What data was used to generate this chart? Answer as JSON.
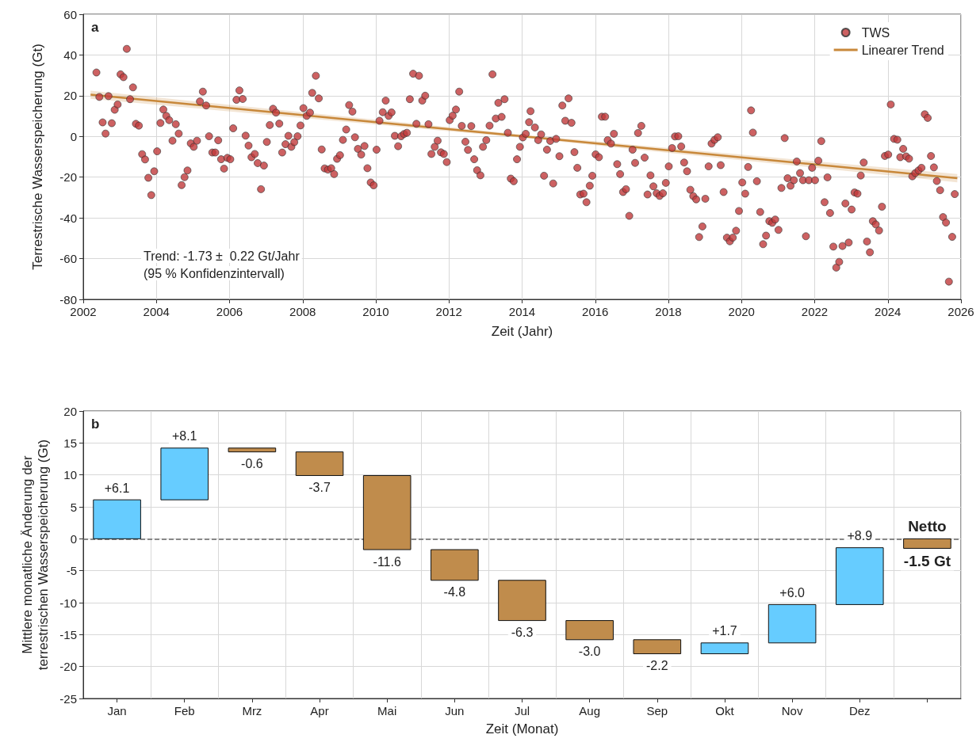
{
  "chart_data": [
    {
      "type": "scatter",
      "xlabel": "Zeit (Jahr)",
      "ylabel": "Terrestrische Wasserspeicherung (Gt)",
      "annotations": [
        "a",
        "Trend: -1.73 ±  0.22 Gt/Jahr",
        "(95 % Konfidenzintervall)"
      ],
      "xlim": [
        2002,
        2026
      ],
      "xticks": [
        2002,
        2004,
        2006,
        2008,
        2010,
        2012,
        2014,
        2016,
        2018,
        2020,
        2022,
        2024,
        2026
      ],
      "ylim": [
        -80,
        60
      ],
      "yticks": [
        -80,
        -60,
        -40,
        -20,
        0,
        20,
        40,
        60
      ],
      "grid": true,
      "legend": "top right",
      "series": [
        {
          "name": "TWS",
          "type": "scatter",
          "marker": "circle",
          "color": "#c0393b",
          "x": [
            2002.36,
            2002.44,
            2002.53,
            2002.61,
            2002.69,
            2002.78,
            2002.86,
            2002.94,
            2003.02,
            2003.1,
            2003.19,
            2003.28,
            2003.36,
            2003.44,
            2003.52,
            2003.61,
            2003.69,
            2003.78,
            2003.86,
            2003.94,
            2004.02,
            2004.11,
            2004.19,
            2004.27,
            2004.35,
            2004.44,
            2004.53,
            2004.61,
            2004.69,
            2004.77,
            2004.85,
            2004.94,
            2005.02,
            2005.11,
            2005.19,
            2005.27,
            2005.36,
            2005.44,
            2005.53,
            2005.61,
            2005.69,
            2005.77,
            2005.85,
            2005.94,
            2006.02,
            2006.1,
            2006.19,
            2006.27,
            2006.36,
            2006.44,
            2006.52,
            2006.6,
            2006.69,
            2006.77,
            2006.86,
            2006.94,
            2007.02,
            2007.1,
            2007.19,
            2007.27,
            2007.36,
            2007.44,
            2007.53,
            2007.61,
            2007.69,
            2007.77,
            2007.86,
            2007.94,
            2008.02,
            2008.11,
            2008.2,
            2008.26,
            2008.36,
            2008.44,
            2008.52,
            2008.6,
            2008.69,
            2008.78,
            2008.86,
            2008.94,
            2009.02,
            2009.1,
            2009.19,
            2009.27,
            2009.36,
            2009.43,
            2009.51,
            2009.6,
            2009.69,
            2009.77,
            2009.86,
            2009.94,
            2010.02,
            2010.1,
            2010.19,
            2010.27,
            2010.35,
            2010.43,
            2010.52,
            2010.61,
            2010.69,
            2010.77,
            2010.85,
            2010.93,
            2011.02,
            2011.11,
            2011.18,
            2011.27,
            2011.35,
            2011.44,
            2011.52,
            2011.61,
            2011.69,
            2011.78,
            2011.86,
            2011.94,
            2012.02,
            2012.1,
            2012.19,
            2012.28,
            2012.35,
            2012.45,
            2012.52,
            2012.61,
            2012.69,
            2012.77,
            2012.86,
            2012.93,
            2013.02,
            2013.11,
            2013.19,
            2013.28,
            2013.35,
            2013.44,
            2013.52,
            2013.61,
            2013.69,
            2013.77,
            2013.86,
            2013.94,
            2014.02,
            2014.1,
            2014.19,
            2014.23,
            2014.35,
            2014.44,
            2014.52,
            2014.6,
            2014.68,
            2014.77,
            2014.85,
            2014.93,
            2015.02,
            2015.1,
            2015.18,
            2015.27,
            2015.35,
            2015.43,
            2015.51,
            2015.59,
            2015.68,
            2015.76,
            2015.85,
            2015.92,
            2016.01,
            2016.1,
            2016.18,
            2016.27,
            2016.34,
            2016.43,
            2016.51,
            2016.6,
            2016.68,
            2016.76,
            2016.84,
            2016.93,
            2017.02,
            2017.09,
            2017.17,
            2017.26,
            2017.35,
            2017.43,
            2017.51,
            2017.59,
            2017.68,
            2017.76,
            2017.85,
            2017.93,
            2018.01,
            2018.1,
            2018.18,
            2018.27,
            2018.35,
            2018.43,
            2018.51,
            2018.6,
            2018.68,
            2018.76,
            2018.84,
            2018.93,
            2019.01,
            2019.1,
            2019.18,
            2019.26,
            2019.35,
            2019.43,
            2019.51,
            2019.6,
            2019.68,
            2019.76,
            2019.85,
            2019.93,
            2020.02,
            2020.1,
            2020.18,
            2020.26,
            2020.31,
            2020.42,
            2020.51,
            2020.59,
            2020.67,
            2020.76,
            2020.84,
            2020.92,
            2021.01,
            2021.09,
            2021.18,
            2021.26,
            2021.34,
            2021.43,
            2021.51,
            2021.6,
            2021.68,
            2021.76,
            2021.84,
            2021.93,
            2022.01,
            2022.1,
            2022.18,
            2022.27,
            2022.35,
            2022.42,
            2022.51,
            2022.59,
            2022.67,
            2022.76,
            2022.84,
            2022.93,
            2023.01,
            2023.09,
            2023.17,
            2023.26,
            2023.34,
            2023.43,
            2023.51,
            2023.59,
            2023.67,
            2023.76,
            2023.84,
            2023.92,
            2024.01,
            2024.08,
            2024.17,
            2024.26,
            2024.34,
            2024.42,
            2024.5,
            2024.58,
            2024.67,
            2024.75,
            2024.84,
            2024.92,
            2025.01,
            2025.09,
            2025.18,
            2025.26,
            2025.34,
            2025.43,
            2025.51,
            2025.59,
            2025.67,
            2025.76,
            2025.83
          ],
          "values": [
            31.4,
            19.4,
            6.9,
            1.4,
            19.8,
            6.5,
            13.1,
            15.7,
            30.5,
            29.1,
            43.0,
            18.3,
            24.1,
            6.2,
            5.3,
            -8.7,
            -11.3,
            -20.3,
            -28.8,
            -17.1,
            -7.3,
            6.6,
            13.2,
            10.1,
            8.0,
            -2.1,
            6.0,
            1.4,
            -23.9,
            -20.0,
            -16.7,
            -3.4,
            -5.1,
            -2.1,
            17.2,
            22.0,
            15.2,
            0.1,
            -7.9,
            -7.9,
            -1.9,
            -11.2,
            -15.8,
            -10.5,
            -11.2,
            4.0,
            18.0,
            22.6,
            18.4,
            0.4,
            -4.5,
            -10.2,
            -8.6,
            -13.1,
            -25.9,
            -14.3,
            -2.7,
            5.6,
            13.6,
            11.7,
            6.3,
            -7.9,
            -3.8,
            0.3,
            -5.1,
            -2.8,
            0.1,
            5.4,
            13.9,
            10.1,
            11.7,
            21.4,
            29.8,
            18.7,
            -6.4,
            -15.7,
            -16.3,
            -15.6,
            -18.5,
            -11.0,
            -9.2,
            -1.7,
            3.4,
            15.4,
            12.2,
            -0.4,
            -6.1,
            -8.9,
            -4.7,
            -15.6,
            -22.6,
            -24.0,
            -6.5,
            7.7,
            11.9,
            17.6,
            10.1,
            11.8,
            0.3,
            -4.8,
            0.1,
            1.2,
            1.8,
            18.3,
            30.8,
            6.2,
            29.8,
            17.6,
            20.0,
            6.0,
            -8.6,
            -5.1,
            -2.1,
            -7.8,
            -8.6,
            -12.6,
            8.0,
            10.2,
            13.2,
            22.0,
            5.2,
            -2.6,
            -6.6,
            5.1,
            -11.2,
            -16.6,
            -19.1,
            -5.1,
            -1.8,
            5.3,
            30.5,
            8.8,
            16.5,
            9.6,
            18.3,
            1.8,
            -20.7,
            -22.0,
            -11.2,
            -5.1,
            -0.5,
            1.3,
            7.0,
            12.4,
            4.4,
            -1.8,
            1.0,
            -19.3,
            -6.5,
            -2.2,
            -23.1,
            -1.2,
            -9.7,
            15.2,
            7.7,
            18.7,
            6.7,
            -7.7,
            -15.4,
            -28.5,
            -28.1,
            -32.3,
            -24.2,
            -19.3,
            -8.8,
            -10.2,
            9.7,
            9.7,
            -1.8,
            -3.5,
            1.3,
            -13.6,
            -18.5,
            -27.3,
            -25.9,
            -39.0,
            -6.5,
            -13.0,
            1.7,
            5.2,
            -10.4,
            -28.5,
            -19.1,
            -24.5,
            -27.9,
            -29.2,
            -27.9,
            -22.8,
            -14.7,
            -5.7,
            0.0,
            0.1,
            -4.9,
            -12.8,
            -17.1,
            -26.2,
            -29.3,
            -30.9,
            -49.4,
            -44.2,
            -30.6,
            -14.7,
            -3.5,
            -1.7,
            -0.4,
            -14.1,
            -27.3,
            -49.7,
            -51.5,
            -49.7,
            -46.3,
            -36.6,
            -22.6,
            -28.1,
            -15.0,
            12.8,
            1.9,
            -22.0,
            -37.1,
            -52.9,
            -48.7,
            -41.6,
            -42.4,
            -40.8,
            -45.9,
            -25.3,
            -0.8,
            -20.5,
            -24.2,
            -21.5,
            -12.3,
            -18.0,
            -21.5,
            -49.0,
            -21.5,
            -15.4,
            -21.5,
            -11.9,
            -2.3,
            -32.3,
            -20.1,
            -37.6,
            -54.1,
            -64.4,
            -61.6,
            -53.8,
            -32.9,
            -52.1,
            -35.9,
            -27.5,
            -28.1,
            -19.2,
            -12.8,
            -51.6,
            -56.9,
            -41.6,
            -43.2,
            -46.2,
            -34.5,
            -9.6,
            -8.9,
            15.7,
            -1.2,
            -1.6,
            -10.2,
            -6.1,
            -9.8,
            -10.9,
            -19.6,
            -18.0,
            -16.7,
            -15.4,
            10.9,
            9.1,
            -9.6,
            -15.2,
            -21.9,
            -26.4,
            -39.6,
            -42.3,
            -71.3,
            -49.3,
            -28.3
          ]
        },
        {
          "name": "Linearer Trend",
          "type": "line",
          "color": "#c8883a",
          "x": [
            2002.2,
            2014,
            2025.9
          ],
          "values": [
            20.5,
            0.1,
            -20.5
          ],
          "lower": [
            18.5,
            -0.7,
            -22.5
          ],
          "upper": [
            22.5,
            0.9,
            -18.5
          ]
        }
      ]
    },
    {
      "type": "bar",
      "xlabel": "Zeit (Monat)",
      "ylabel": "Mittlere monatliche Änderung der\nterrestrischen Wasserspeicherung (Gt)",
      "annotations": [
        "b",
        "Netto"
      ],
      "categories": [
        "Jan",
        "Feb",
        "Mrz",
        "Apr",
        "Mai",
        "Jun",
        "Jul",
        "Aug",
        "Sep",
        "Okt",
        "Nov",
        "Dez",
        null
      ],
      "values": [
        6.1,
        8.1,
        -0.6,
        -3.7,
        -11.6,
        -4.8,
        -6.3,
        -3.0,
        -2.2,
        1.7,
        6.0,
        8.9,
        -1.5
      ],
      "base": [
        0,
        6.1,
        14.2,
        13.6,
        9.9,
        -1.7,
        -6.5,
        -12.8,
        -15.8,
        -18.0,
        -16.3,
        -10.3,
        0
      ],
      "colors": [
        "#66ccff",
        "#66ccff",
        "#c08c4c",
        "#c08c4c",
        "#c08c4c",
        "#c08c4c",
        "#c08c4c",
        "#c08c4c",
        "#c08c4c",
        "#66ccff",
        "#66ccff",
        "#66ccff",
        "#c08c4c"
      ],
      "value_labels": [
        "+6.1",
        "+8.1",
        "-0.6",
        "-3.7",
        "-11.6",
        "-4.8",
        "-6.3",
        "-3.0",
        "-2.2",
        "+1.7",
        "+6.0",
        "+8.9",
        "-1.5 Gt"
      ],
      "ylim": [
        -25,
        20
      ],
      "yticks": [
        -25,
        -20,
        -15,
        -10,
        -5,
        0,
        5,
        10,
        15,
        20
      ],
      "grid": true,
      "ref_lines": [
        {
          "axis": "y",
          "value": 0,
          "color": "#666666",
          "line_style": "dashed"
        }
      ]
    }
  ]
}
